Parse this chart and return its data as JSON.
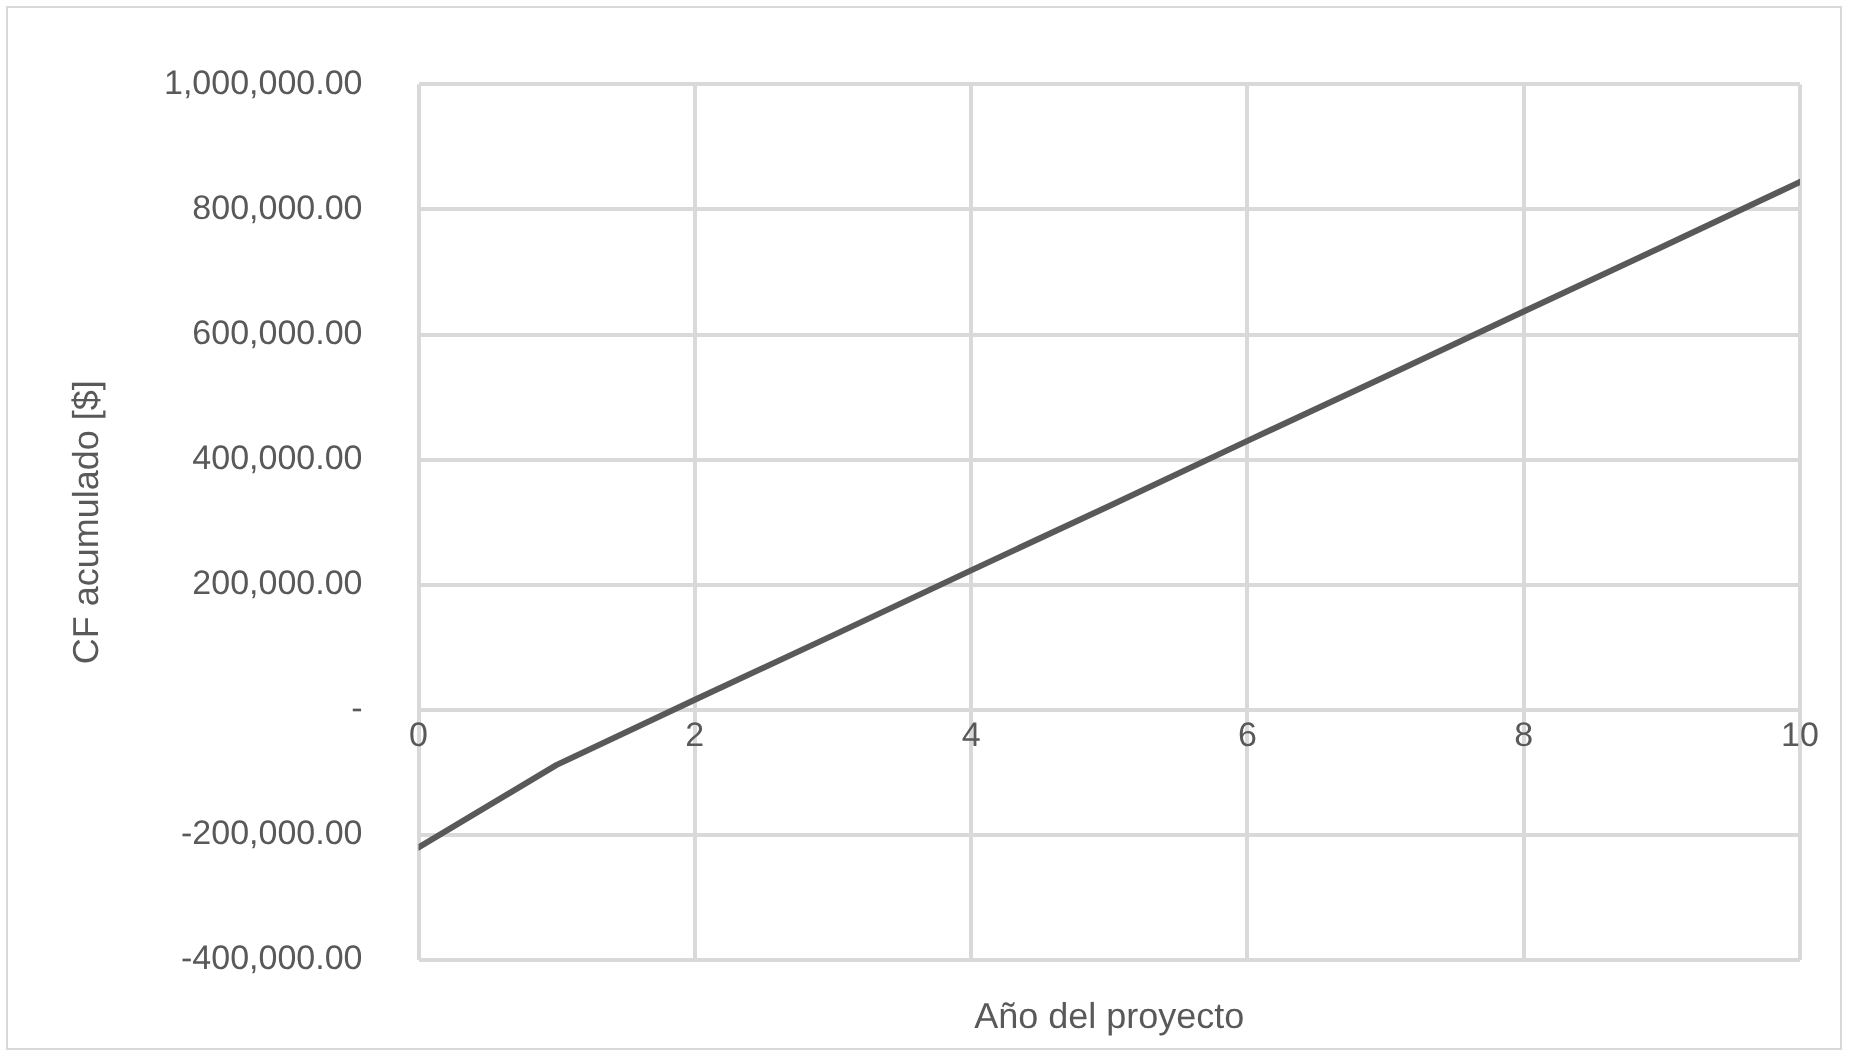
{
  "chart_data": {
    "type": "line",
    "xlabel": "Año del proyecto",
    "ylabel": "CF acumulado [$]",
    "x": [
      0,
      1,
      2,
      3,
      4,
      5,
      6,
      7,
      8,
      9,
      10
    ],
    "series": [
      {
        "color": "#595959",
        "values": [
          -220000,
          -88000,
          16000,
          119000,
          223000,
          326000,
          430000,
          533000,
          637000,
          740000,
          844000
        ]
      }
    ],
    "xlim": [
      0,
      10
    ],
    "xticks": [
      0,
      2,
      4,
      6,
      8,
      10
    ],
    "ylim": [
      -400000,
      1000000
    ],
    "yticks": [
      {
        "value": -400000,
        "label": "-400,000.00"
      },
      {
        "value": -200000,
        "label": "-200,000.00"
      },
      {
        "value": 0,
        "label": "-"
      },
      {
        "value": 200000,
        "label": "200,000.00"
      },
      {
        "value": 400000,
        "label": "400,000.00"
      },
      {
        "value": 600000,
        "label": "600,000.00"
      },
      {
        "value": 800000,
        "label": "800,000.00"
      },
      {
        "value": 1000000,
        "label": "1,000,000.00"
      }
    ],
    "grid": true,
    "legend": false,
    "marker": "none",
    "line_style": "solid"
  }
}
